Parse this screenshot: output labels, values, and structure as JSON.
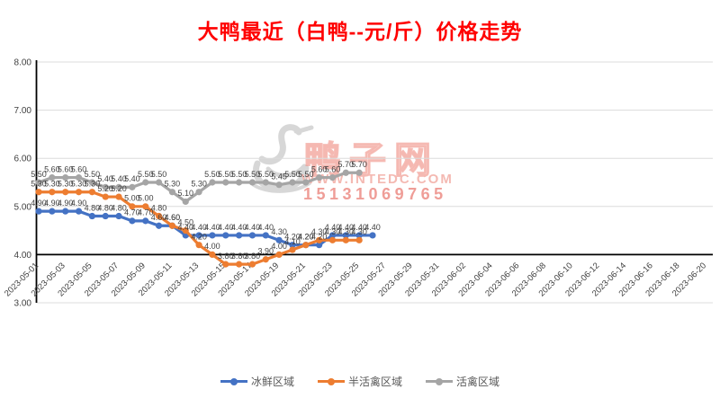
{
  "title": "大鸭最近（白鸭--元/斤）价格走势",
  "watermark": {
    "site_name": "鸭子网",
    "url": "WWW.INTEDC.COM",
    "phone": "15131069765",
    "logo": "duck-logo"
  },
  "colors": {
    "title": "#FF0000",
    "series_fresh": "#4472C4",
    "series_semi_live": "#ED7D31",
    "series_live": "#A5A5A5",
    "data_label": "#3F3F3F",
    "axis": "#000000",
    "gridline": "#DCDCDC",
    "watermark_pink": "#EF9D97"
  },
  "chart_data": {
    "type": "line",
    "title": "大鸭最近（白鸭--元/斤）价格走势",
    "unit": "元/斤",
    "grid": true,
    "legend_position": "bottom",
    "ylim": [
      3.0,
      8.0
    ],
    "axis_cross_y": 4.0,
    "y_tick_labels": [
      "8.00",
      "7.00",
      "6.00",
      "5.00",
      "4.00",
      "3.00"
    ],
    "x_tick_labels": [
      "2023-05-01",
      "2023-05-03",
      "2023-05-05",
      "2023-05-07",
      "2023-05-09",
      "2023-05-11",
      "2023-05-13",
      "2023-05-15",
      "2023-05-17",
      "2023-05-19",
      "2023-05-21",
      "2023-05-23",
      "2023-05-25",
      "2023-05-27",
      "2023-05-29",
      "2023-05-31",
      "2023-06-02",
      "2023-06-04",
      "2023-06-06",
      "2023-06-08",
      "2023-06-10",
      "2023-06-12",
      "2023-06-14",
      "2023-06-16",
      "2023-06-18",
      "2023-06-20"
    ],
    "data_start_date": "2023-05-01",
    "data_end_date": "2023-05-25",
    "series": [
      {
        "name": "冰鲜区域",
        "color": "#4472C4",
        "values": [
          4.9,
          4.9,
          4.9,
          4.9,
          4.8,
          4.8,
          4.8,
          4.7,
          4.7,
          4.6,
          4.6,
          4.4,
          4.4,
          4.4,
          4.4,
          4.4,
          4.4,
          4.4,
          4.3,
          4.2,
          4.2,
          4.2,
          4.4,
          4.4,
          4.4,
          4.4
        ]
      },
      {
        "name": "半活禽区域",
        "color": "#ED7D31",
        "values": [
          5.3,
          5.3,
          5.3,
          5.3,
          5.3,
          5.2,
          5.2,
          5.0,
          5.0,
          4.8,
          4.6,
          4.5,
          4.2,
          4.0,
          3.8,
          3.8,
          3.8,
          3.9,
          4.0,
          4.1,
          4.2,
          4.3,
          4.3,
          4.3,
          4.3
        ]
      },
      {
        "name": "活禽区域",
        "color": "#A5A5A5",
        "values": [
          5.5,
          5.6,
          5.6,
          5.6,
          5.5,
          5.4,
          5.4,
          5.4,
          5.5,
          5.5,
          5.3,
          5.1,
          5.3,
          5.5,
          5.5,
          5.5,
          5.5,
          5.5,
          5.45,
          5.5,
          5.5,
          5.6,
          5.6,
          5.7,
          5.7
        ]
      }
    ]
  }
}
